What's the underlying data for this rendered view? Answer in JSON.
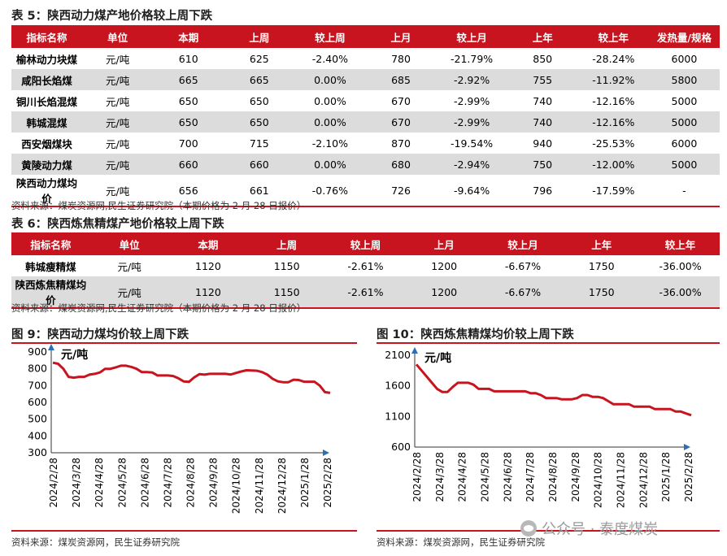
{
  "table5": {
    "title": "表 5：陕西动力煤产地价格较上周下跌",
    "headers": [
      "指标名称",
      "单位",
      "本期",
      "上周",
      "较上周",
      "上月",
      "较上月",
      "上年",
      "较上年",
      "发热量/规格"
    ],
    "rows": [
      [
        "榆林动力块煤",
        "元/吨",
        "610",
        "625",
        "-2.40%",
        "780",
        "-21.79%",
        "850",
        "-28.24%",
        "6000"
      ],
      [
        "咸阳长焰煤",
        "元/吨",
        "665",
        "665",
        "0.00%",
        "685",
        "-2.92%",
        "755",
        "-11.92%",
        "5800"
      ],
      [
        "铜川长焰混煤",
        "元/吨",
        "650",
        "650",
        "0.00%",
        "670",
        "-2.99%",
        "740",
        "-12.16%",
        "5000"
      ],
      [
        "韩城混煤",
        "元/吨",
        "650",
        "650",
        "0.00%",
        "670",
        "-2.99%",
        "740",
        "-12.16%",
        "5000"
      ],
      [
        "西安烟煤块",
        "元/吨",
        "700",
        "715",
        "-2.10%",
        "870",
        "-19.54%",
        "940",
        "-25.53%",
        "6000"
      ],
      [
        "黄陵动力煤",
        "元/吨",
        "660",
        "660",
        "0.00%",
        "680",
        "-2.94%",
        "750",
        "-12.00%",
        "5000"
      ],
      [
        "陕西动力煤均价",
        "元/吨",
        "656",
        "661",
        "-0.76%",
        "726",
        "-9.64%",
        "796",
        "-17.59%",
        "-"
      ]
    ],
    "source": "资料来源：煤炭资源网,民生证券研究院（本期价格为 2 月 28 日报价）"
  },
  "table6": {
    "title": "表 6：陕西炼焦精煤产地价格较上周下跌",
    "headers": [
      "指标名称",
      "单位",
      "本期",
      "上周",
      "较上周",
      "上月",
      "较上月",
      "上年",
      "较上年"
    ],
    "rows": [
      [
        "韩城瘦精煤",
        "元/吨",
        "1120",
        "1150",
        "-2.61%",
        "1200",
        "-6.67%",
        "1750",
        "-36.00%"
      ],
      [
        "陕西炼焦精煤均价",
        "元/吨",
        "1120",
        "1150",
        "-2.61%",
        "1200",
        "-6.67%",
        "1750",
        "-36.00%"
      ]
    ],
    "source": "资料来源：煤炭资源网,民生证券研究院（本期价格为 2 月 28 日报价）"
  },
  "chart_data": [
    {
      "type": "line",
      "title": "图 9：陕西动力煤均价较上周下跌",
      "ylabel": "元/吨",
      "ylim": [
        300,
        900
      ],
      "yticks": [
        300,
        400,
        500,
        600,
        700,
        800,
        900
      ],
      "xticks": [
        "2024/2/28",
        "2024/3/28",
        "2024/4/28",
        "2024/5/28",
        "2024/6/28",
        "2024/7/28",
        "2024/8/28",
        "2024/9/28",
        "2024/10/28",
        "2024/11/28",
        "2024/12/28",
        "2025/1/28",
        "2025/2/28"
      ],
      "series": [
        {
          "color": "#c8141e",
          "values": [
            836,
            830,
            800,
            752,
            747,
            752,
            752,
            765,
            770,
            778,
            800,
            800,
            808,
            818,
            818,
            811,
            800,
            780,
            780,
            778,
            760,
            760,
            760,
            757,
            743,
            725,
            722,
            748,
            768,
            765,
            770,
            770,
            770,
            770,
            766,
            775,
            784,
            791,
            790,
            788,
            780,
            765,
            741,
            725,
            720,
            720,
            735,
            733,
            723,
            723,
            723,
            700,
            661,
            656
          ]
        }
      ],
      "source": "资料来源：煤炭资源网，民生证券研究院"
    },
    {
      "type": "line",
      "title": "图 10：陕西炼焦精煤均价较上周下跌",
      "ylabel": "元/吨",
      "ylim": [
        600,
        2100
      ],
      "yticks": [
        600,
        1100,
        1600,
        2100
      ],
      "xticks": [
        "2024/2/28",
        "2024/3/28",
        "2024/4/28",
        "2024/5/28",
        "2024/6/28",
        "2024/7/28",
        "2024/8/28",
        "2024/9/28",
        "2024/10/28",
        "2024/11/28",
        "2024/12/28",
        "2025/1/28",
        "2025/2/28"
      ],
      "series": [
        {
          "color": "#c8141e",
          "values": [
            1950,
            1850,
            1750,
            1650,
            1550,
            1500,
            1500,
            1580,
            1650,
            1650,
            1650,
            1620,
            1550,
            1550,
            1550,
            1510,
            1510,
            1510,
            1510,
            1510,
            1510,
            1510,
            1480,
            1480,
            1450,
            1400,
            1400,
            1400,
            1380,
            1380,
            1380,
            1400,
            1450,
            1450,
            1420,
            1420,
            1400,
            1350,
            1300,
            1300,
            1300,
            1300,
            1260,
            1260,
            1260,
            1260,
            1220,
            1220,
            1220,
            1220,
            1180,
            1180,
            1150,
            1120
          ]
        }
      ],
      "source": "资料来源：煤炭资源网，民生证券研究院"
    }
  ],
  "watermark": "公众号 · 泰度煤炭"
}
